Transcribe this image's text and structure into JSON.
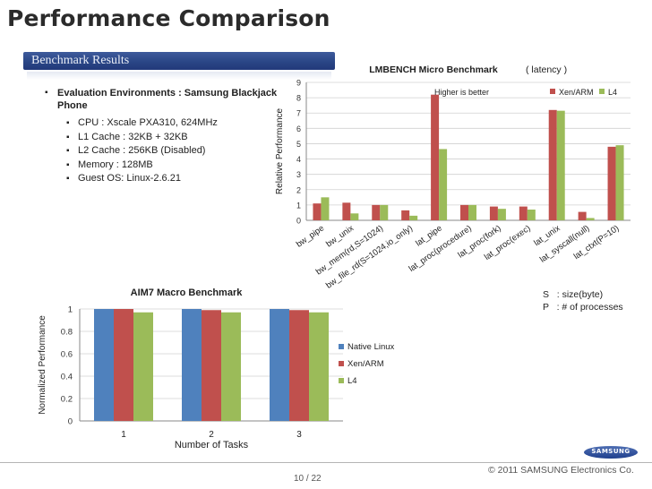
{
  "page": {
    "title": "Performance Comparison",
    "section_label": "Benchmark Results",
    "page_number": "10 / 22",
    "copyright": "© 2011  SAMSUNG Electronics Co.",
    "logo_text": "SAMSUNG"
  },
  "environment": {
    "heading": "Evaluation Environments : Samsung Blackjack Phone",
    "items": [
      "CPU : Xscale PXA310, 624MHz",
      "L1 Cache : 32KB + 32KB",
      "L2 Cache : 256KB (Disabled)",
      "Memory : 128MB",
      "Guest OS: Linux-2.6.21"
    ]
  },
  "notes": {
    "size_note": "S   : size(byte)",
    "proc_note": "P   : # of processes"
  },
  "colors": {
    "native": "#4f81bd",
    "xen": "#c0504d",
    "l4": "#9bbb59",
    "section_bar": "#2a4686"
  },
  "chart_data": [
    {
      "type": "bar",
      "title": "LMBENCH Micro Benchmark",
      "title_suffix": "( latency )",
      "annotation": "Higher is better",
      "xlabel": "",
      "ylabel": "Relative Performance",
      "ylim": [
        0,
        9
      ],
      "yticks": [
        0,
        1,
        2,
        3,
        4,
        5,
        6,
        7,
        8,
        9
      ],
      "grid": true,
      "legend_position": "top-right",
      "categories": [
        "bw_pipe",
        "bw_unix",
        "bw_mem(rd,S=1024)",
        "bw_file_rd(S=1024,io_only)",
        "lat_pipe",
        "lat_proc(procedure)",
        "lat_proc(fork)",
        "lat_proc(exec)",
        "lat_unix",
        "lat_syscall(null)",
        "lat_ctxt(P=10)"
      ],
      "series": [
        {
          "name": "Xen/ARM",
          "values": [
            1.1,
            1.15,
            1.0,
            0.65,
            8.2,
            1.0,
            0.9,
            0.9,
            7.2,
            0.55,
            4.8
          ]
        },
        {
          "name": "L4",
          "values": [
            1.5,
            0.45,
            1.0,
            0.3,
            4.65,
            1.0,
            0.75,
            0.7,
            7.15,
            0.15,
            4.9
          ]
        }
      ]
    },
    {
      "type": "bar",
      "title": "AIM7 Macro Benchmark",
      "xlabel": "Number of Tasks",
      "ylabel": "Normalized Performance",
      "ylim": [
        0,
        1
      ],
      "yticks": [
        0,
        0.2,
        0.4,
        0.6,
        0.8,
        1
      ],
      "ytick_labels": [
        "0",
        "0.2",
        "0.4",
        "0.6",
        "0.8",
        "1"
      ],
      "grid": true,
      "legend_position": "right",
      "categories": [
        "1",
        "2",
        "3"
      ],
      "series": [
        {
          "name": "Native Linux",
          "values": [
            1.0,
            1.0,
            1.0
          ]
        },
        {
          "name": "Xen/ARM",
          "values": [
            1.0,
            0.99,
            0.99
          ]
        },
        {
          "name": "L4",
          "values": [
            0.97,
            0.97,
            0.97
          ]
        }
      ]
    }
  ]
}
